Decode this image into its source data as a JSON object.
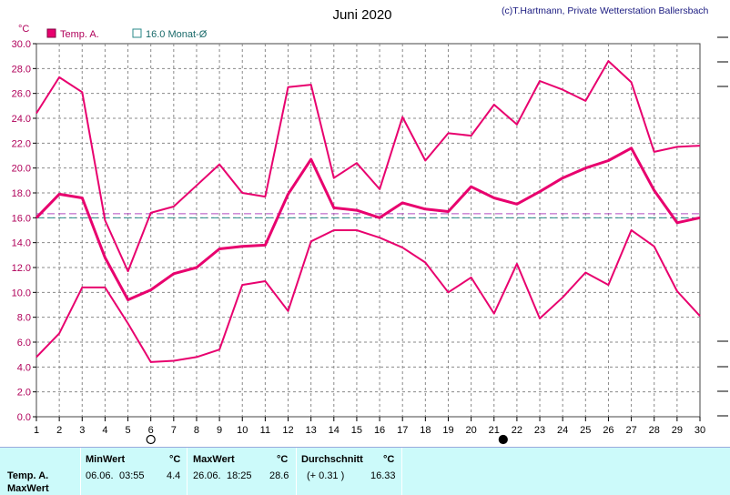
{
  "chart_data": {
    "type": "line",
    "title": "Juni 2020",
    "credit": "(c)T.Hartmann, Private Wetterstation Ballersbach",
    "ylabel": "°C",
    "ylim": [
      0,
      30
    ],
    "yticks": [
      "0.0",
      "2.0",
      "4.0",
      "6.0",
      "8.0",
      "10.0",
      "12.0",
      "14.0",
      "16.0",
      "18.0",
      "20.0",
      "22.0",
      "24.0",
      "26.0",
      "28.0",
      "30.0"
    ],
    "x": [
      1,
      2,
      3,
      4,
      5,
      6,
      7,
      8,
      9,
      10,
      11,
      12,
      13,
      14,
      15,
      16,
      17,
      18,
      19,
      20,
      21,
      22,
      23,
      24,
      25,
      26,
      27,
      28,
      29,
      30
    ],
    "legend": [
      {
        "label": "Temp. A.",
        "color": "#e8006e"
      },
      {
        "label": "16.0 Monat-Ø",
        "color": "#2a8a8a"
      }
    ],
    "series": [
      {
        "name": "Temp. A.",
        "color": "#e8006e",
        "values": [
          16.0,
          17.9,
          17.6,
          12.8,
          9.4,
          10.2,
          11.5,
          12.0,
          13.5,
          13.7,
          13.8,
          17.9,
          20.7,
          16.8,
          16.6,
          16.0,
          17.2,
          16.7,
          16.5,
          18.5,
          17.6,
          17.1,
          18.1,
          19.2,
          20.0,
          20.6,
          21.6,
          18.2,
          15.6,
          16.0
        ]
      },
      {
        "name": "",
        "color": "#e8006e",
        "values": [
          24.4,
          27.3,
          26.1,
          15.8,
          11.7,
          16.4,
          16.9,
          18.6,
          20.3,
          18.0,
          17.7,
          26.5,
          26.7,
          19.2,
          20.4,
          18.3,
          24.1,
          20.6,
          22.8,
          22.6,
          25.1,
          23.5,
          27.0,
          26.3,
          25.4,
          28.6,
          26.9,
          21.3,
          21.7,
          21.8
        ]
      },
      {
        "name": "",
        "color": "#e8006e",
        "values": [
          4.8,
          6.7,
          10.4,
          10.4,
          7.5,
          4.4,
          4.5,
          4.8,
          5.4,
          10.6,
          10.9,
          8.5,
          14.1,
          15.0,
          15.0,
          14.4,
          13.6,
          12.4,
          10.0,
          11.2,
          8.3,
          12.3,
          7.9,
          9.6,
          11.6,
          10.6,
          15.0,
          13.7,
          10.1,
          8.1
        ]
      }
    ],
    "reference_lines": [
      {
        "value": 16.0,
        "color": "#2a8a8a"
      },
      {
        "value": 16.33,
        "color": "#b04ac0"
      }
    ],
    "moon_markers": [
      {
        "day": 6,
        "type": "full-moon"
      },
      {
        "day": 21.4,
        "type": "new-moon"
      }
    ],
    "grid": true
  },
  "stats": {
    "row_label_1": "Temp. A.",
    "row_label_2": "MaxWert",
    "min_header": "MinWert",
    "min_unit": "°C",
    "min_date": "06.06.",
    "min_time": "03:55",
    "min_value": "4.4",
    "max_header": "MaxWert",
    "max_unit": "°C",
    "max_date": "26.06.",
    "max_time": "18:25",
    "max_value": "28.6",
    "avg_header": "Durchschnitt",
    "avg_unit": "°C",
    "avg_delta": "(+ 0.31 )",
    "avg_value": "16.33"
  }
}
